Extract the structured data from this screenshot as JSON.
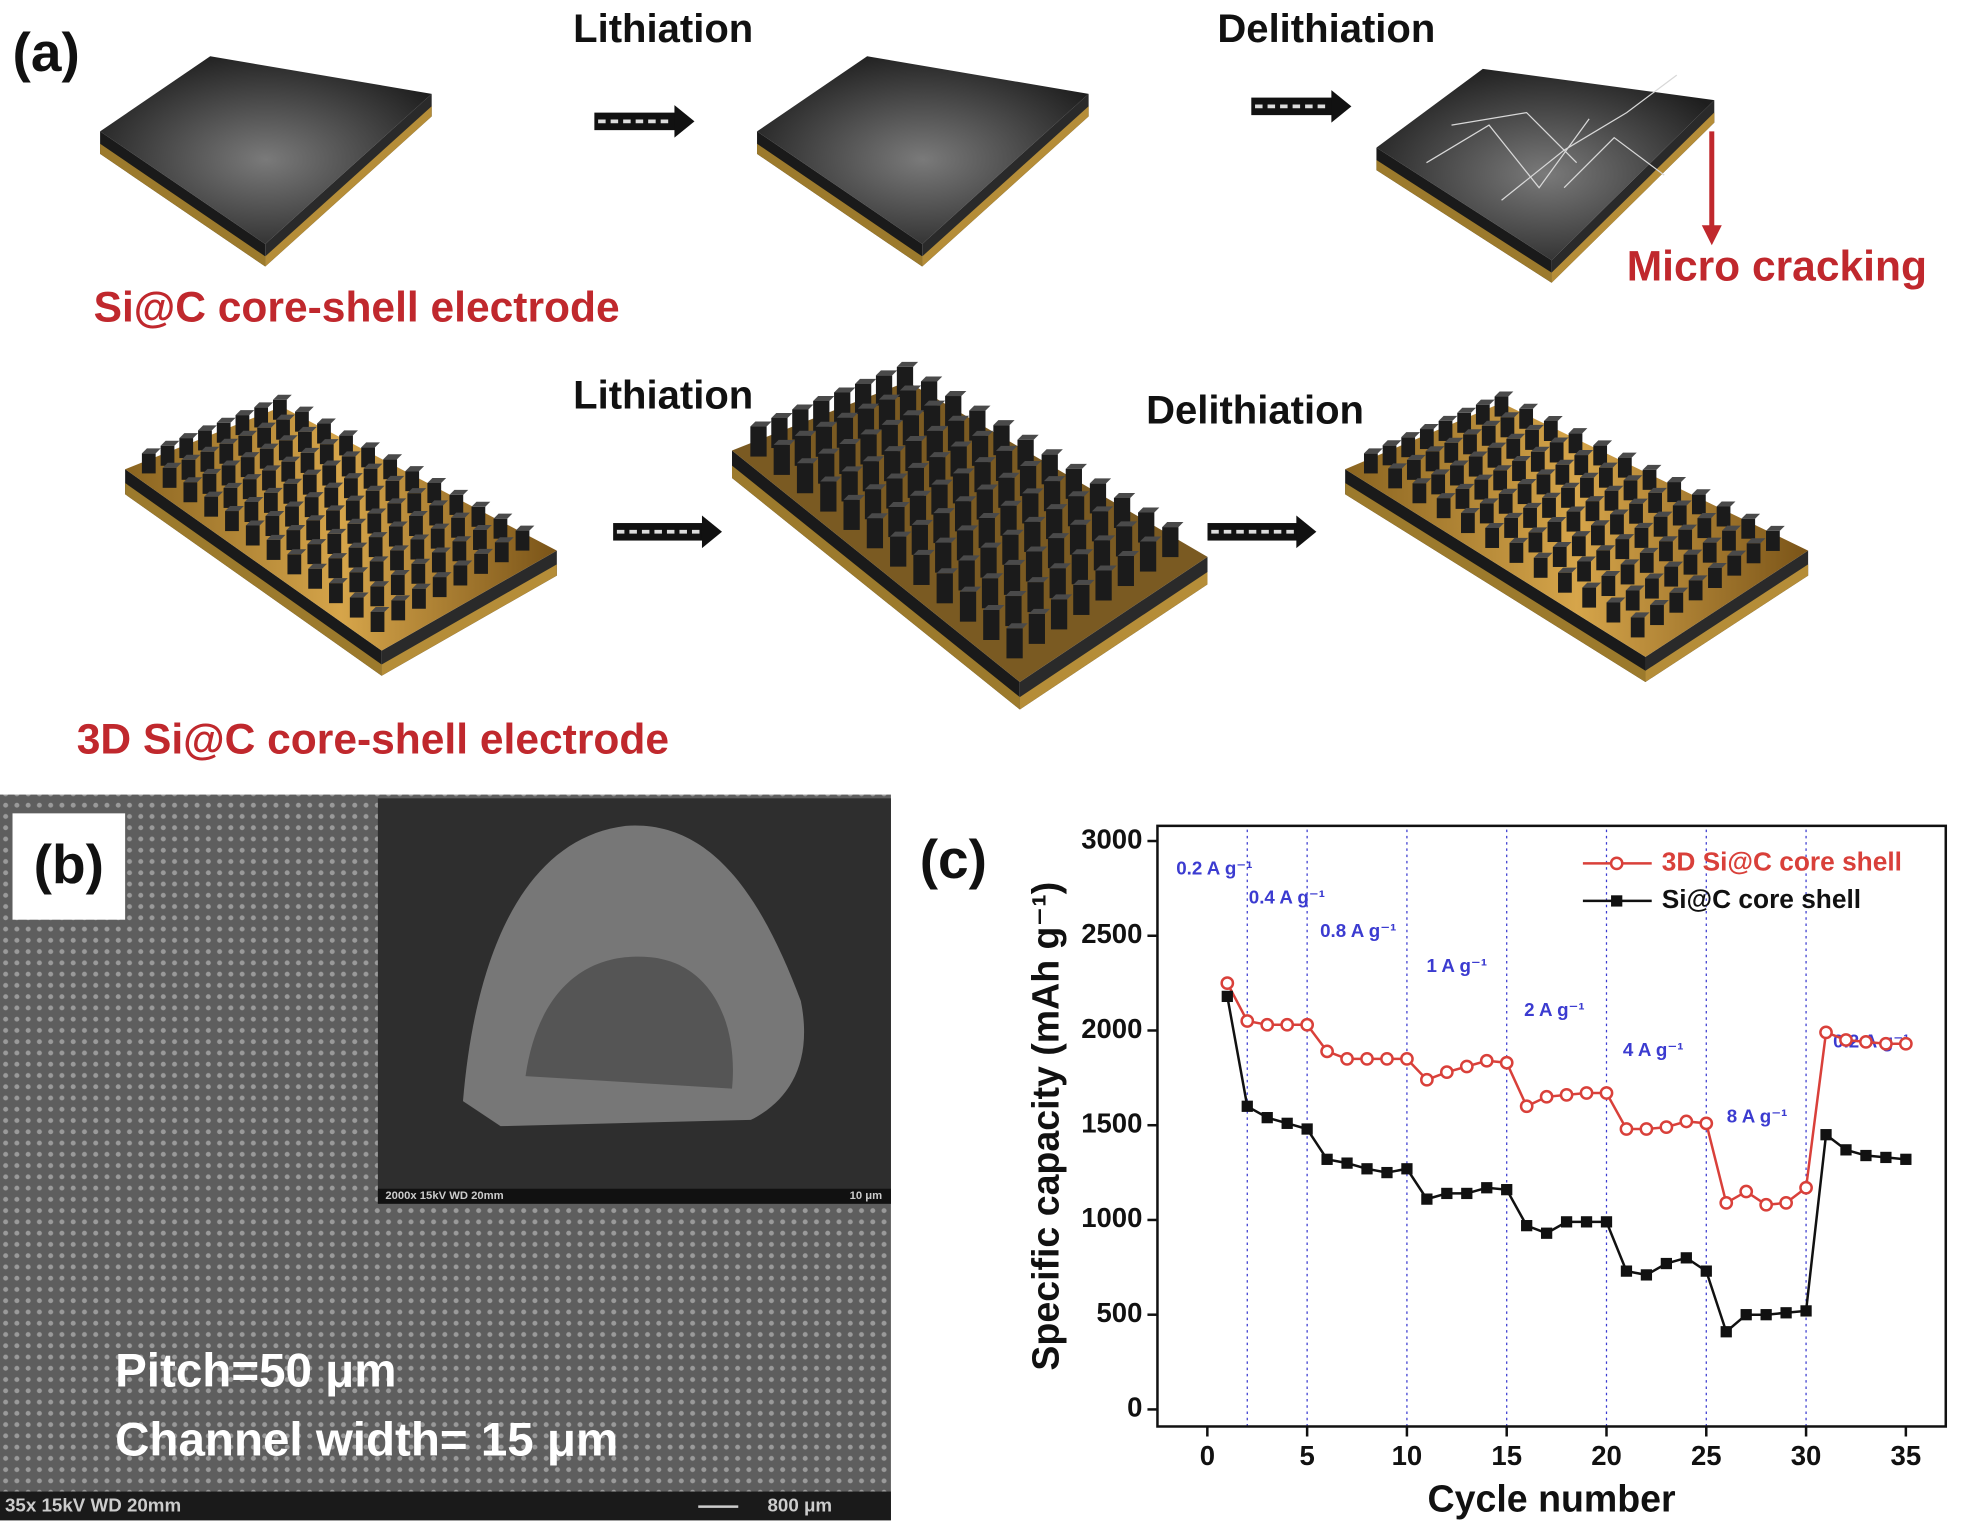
{
  "panel_a": {
    "label": "(a)",
    "row1": {
      "step1": "Lithiation",
      "step2": "Delithiation",
      "caption": "Si@C core-shell electrode",
      "annotation": "Micro cracking"
    },
    "row2": {
      "step1": "Lithiation",
      "step2": "Delithiation",
      "caption": "3D Si@C core-shell electrode"
    }
  },
  "panel_b": {
    "label": "(b)",
    "pitch": "Pitch=50 μm",
    "channel": "Channel width= 15 μm",
    "info_bar": "35x  15kV    WD 20mm",
    "scale_bar": "800 μm",
    "inset_info": "2000x  15kV    WD 20mm",
    "inset_scale": "10 μm"
  },
  "chart_data": {
    "type": "line",
    "panel_label": "(c)",
    "xlabel": "Cycle number",
    "ylabel": "Specific capacity (mAh g⁻¹)",
    "x": [
      1,
      2,
      3,
      4,
      5,
      6,
      7,
      8,
      9,
      10,
      11,
      12,
      13,
      14,
      15,
      16,
      17,
      18,
      19,
      20,
      21,
      22,
      23,
      24,
      25,
      26,
      27,
      28,
      29,
      30,
      31,
      32,
      33,
      34,
      35
    ],
    "series": [
      {
        "name": "3D Si@C core shell",
        "color": "#d9403a",
        "marker": "circle",
        "values": [
          2250,
          2050,
          2030,
          2030,
          2030,
          1890,
          1850,
          1850,
          1850,
          1850,
          1740,
          1780,
          1810,
          1840,
          1830,
          1600,
          1650,
          1660,
          1670,
          1670,
          1480,
          1480,
          1490,
          1520,
          1510,
          1090,
          1150,
          1080,
          1090,
          1170,
          1990,
          1950,
          1940,
          1930,
          1930
        ]
      },
      {
        "name": "Si@C core shell",
        "color": "#111111",
        "marker": "square",
        "values": [
          2180,
          1600,
          1540,
          1510,
          1480,
          1320,
          1300,
          1270,
          1250,
          1270,
          1110,
          1140,
          1140,
          1170,
          1160,
          970,
          930,
          990,
          990,
          990,
          730,
          710,
          770,
          800,
          730,
          410,
          500,
          500,
          510,
          520,
          1450,
          1370,
          1340,
          1330,
          1320
        ]
      }
    ],
    "annotations": [
      "0.2 A g⁻¹",
      "0.4 A g⁻¹",
      "0.8 A g⁻¹",
      "1 A g⁻¹",
      "2 A g⁻¹",
      "4 A g⁻¹",
      "8 A g⁻¹",
      "0.2 A g⁻¹"
    ],
    "annotation_color": "#3b3bd0",
    "dividers": [
      2,
      5,
      10,
      15,
      20,
      25,
      30
    ],
    "xlim": [
      -2.5,
      37
    ],
    "ylim": [
      -90,
      3080
    ],
    "xticks": [
      0,
      5,
      10,
      15,
      20,
      25,
      30,
      35
    ],
    "yticks": [
      0,
      500,
      1000,
      1500,
      2000,
      2500,
      3000
    ],
    "legend": "top-right"
  }
}
